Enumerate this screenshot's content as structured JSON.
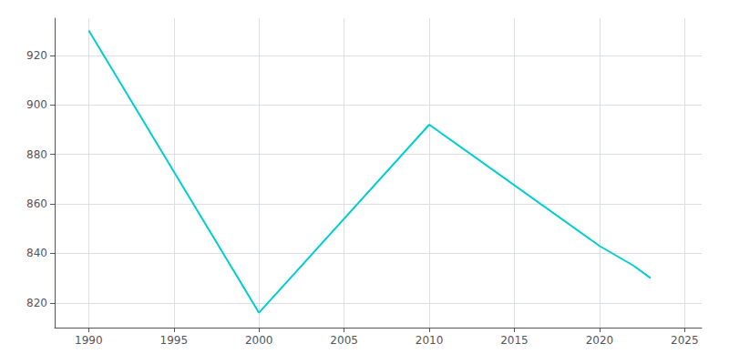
{
  "chart_data": {
    "type": "line",
    "x": [
      1990,
      2000,
      2010,
      2020,
      2022,
      2023
    ],
    "values": [
      930,
      816,
      892,
      843,
      835,
      830
    ],
    "color": "#00CED1",
    "xlim": [
      1988,
      2026
    ],
    "ylim": [
      810,
      935
    ],
    "xticks": [
      1990,
      1995,
      2000,
      2005,
      2010,
      2015,
      2020,
      2025
    ],
    "yticks": [
      820,
      840,
      860,
      880,
      900,
      920
    ],
    "grid": true
  }
}
